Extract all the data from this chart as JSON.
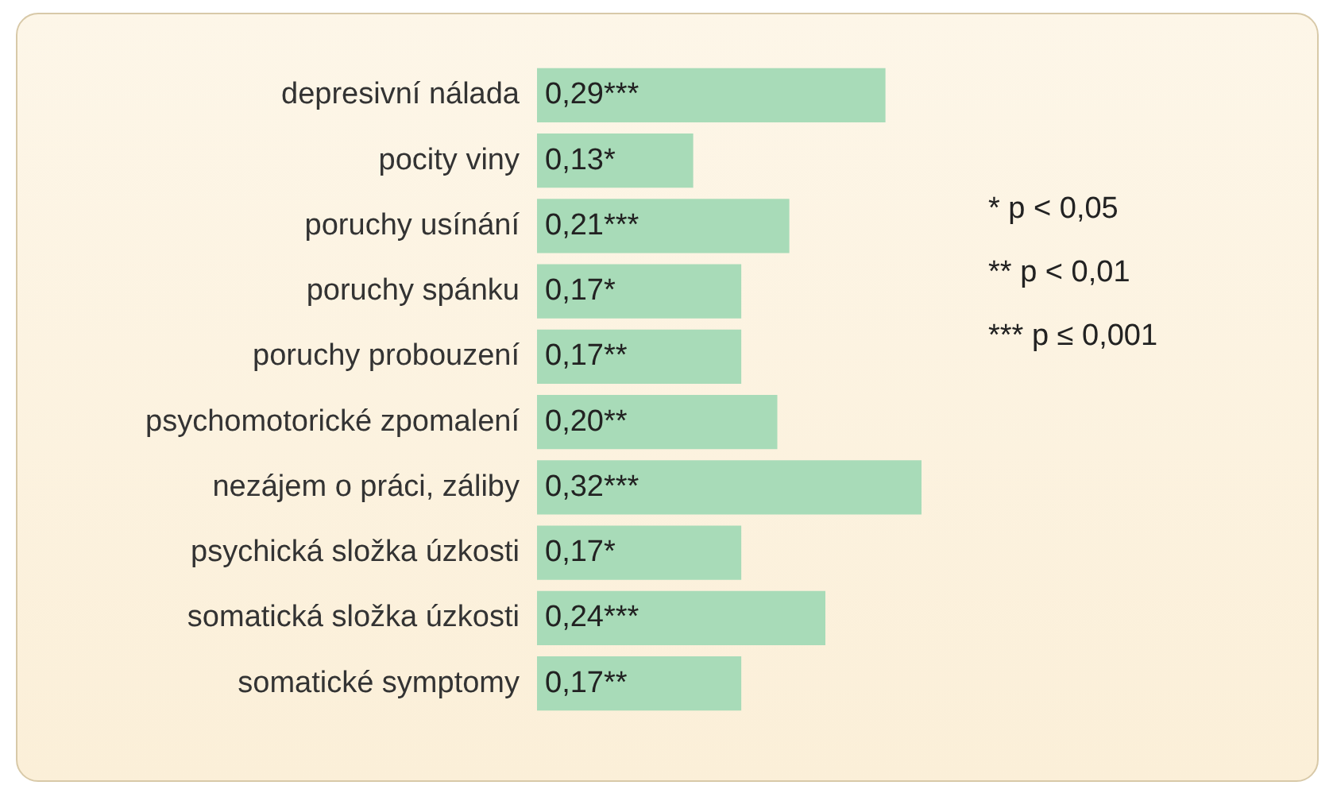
{
  "chart_data": {
    "type": "bar",
    "orientation": "horizontal",
    "categories": [
      "depresivní nálada",
      "pocity viny",
      "poruchy usínání",
      "poruchy spánku",
      "poruchy probouzení",
      "psychomotorické zpomalení",
      "nezájem o práci, záliby",
      "psychická složka úzkosti",
      "somatická složka úzkosti",
      "somatické symptomy"
    ],
    "values": [
      0.29,
      0.13,
      0.21,
      0.17,
      0.17,
      0.2,
      0.32,
      0.17,
      0.24,
      0.17
    ],
    "value_labels": [
      "0,29***",
      "0,13*",
      "0,21***",
      "0,17*",
      "0,17**",
      "0,20**",
      "0,32***",
      "0,17*",
      "0,24***",
      "0,17**"
    ],
    "color": "#a8dbb8",
    "xlim": [
      0,
      0.32
    ],
    "tick_labels": "y",
    "legend": false,
    "annotations": [
      "* p < 0,05",
      "** p < 0,01",
      "*** p ≤ 0,001"
    ]
  }
}
